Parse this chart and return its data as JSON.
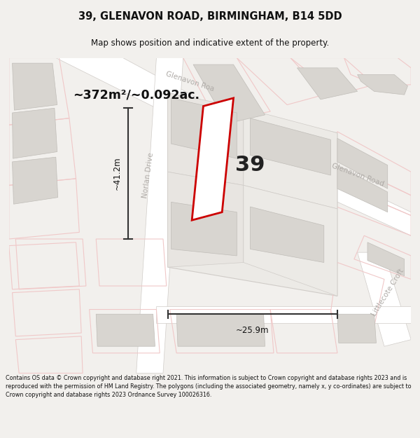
{
  "title_line1": "39, GLENAVON ROAD, BIRMINGHAM, B14 5DD",
  "title_line2": "Map shows position and indicative extent of the property.",
  "area_text": "~372m²/~0.092ac.",
  "number_text": "39",
  "dim_width": "~25.9m",
  "dim_height": "~41.2m",
  "road_label_top": "Glenavon Roa",
  "road_label_right": "Glenavon Road",
  "road_label_left": "Norlan Drive",
  "road_label_br": "Littlecote Croft",
  "footer_text": "Contains OS data © Crown copyright and database right 2021. This information is subject to Crown copyright and database rights 2023 and is reproduced with the permission of HM Land Registry. The polygons (including the associated geometry, namely x, y co-ordinates) are subject to Crown copyright and database rights 2023 Ordnance Survey 100026316.",
  "bg_color": "#f2f0ed",
  "map_bg": "#f7f5f2",
  "plot_stroke": "#cc0000",
  "plot_fill": "#ffffff",
  "street_color": "#f0c8c8",
  "road_fill": "#e8e5e0",
  "building_fill": "#d8d5d0",
  "building_stroke": "#c0bdb8",
  "parcel_stroke": "#d0ccc8",
  "dim_color": "#333333",
  "road_text_color": "#b0aca8",
  "title_color": "#111111",
  "footer_color": "#111111"
}
